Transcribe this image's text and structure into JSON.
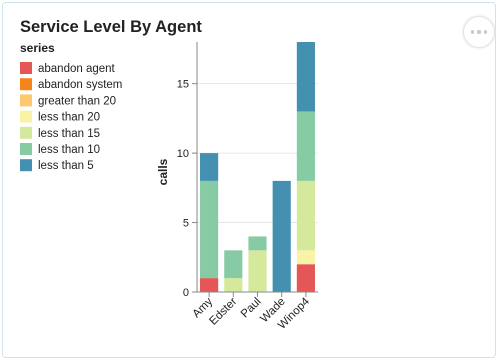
{
  "card": {
    "title": "Service Level By Agent",
    "menu_icon": "more-horizontal-icon"
  },
  "chart_data": {
    "type": "bar",
    "stacked": true,
    "categories": [
      "Amy",
      "Edster",
      "Paul",
      "Wade",
      "Winop4"
    ],
    "legend_title": "series",
    "legend_position": "top-left",
    "ylabel": "calls",
    "xlabel": "",
    "ylim": [
      0,
      18
    ],
    "yticks": [
      0,
      5,
      10,
      15
    ],
    "grid": true,
    "series": [
      {
        "name": "abandon agent",
        "color": "#e45756",
        "values": [
          1,
          0,
          0,
          0,
          2
        ]
      },
      {
        "name": "abandon system",
        "color": "#f58518",
        "values": [
          0,
          0,
          0,
          0,
          0
        ]
      },
      {
        "name": "greater than 20",
        "color": "#fdc86e",
        "values": [
          0,
          0,
          0,
          0,
          0
        ]
      },
      {
        "name": "less than 20",
        "color": "#f9f3a6",
        "values": [
          0,
          0,
          0,
          0,
          1
        ]
      },
      {
        "name": "less than 15",
        "color": "#d4e99b",
        "values": [
          0,
          1,
          3,
          0,
          5
        ]
      },
      {
        "name": "less than 10",
        "color": "#86cba3",
        "values": [
          7,
          2,
          1,
          0,
          5
        ]
      },
      {
        "name": "less than 5",
        "color": "#4390b1",
        "values": [
          2,
          0,
          0,
          8,
          5
        ]
      }
    ]
  }
}
